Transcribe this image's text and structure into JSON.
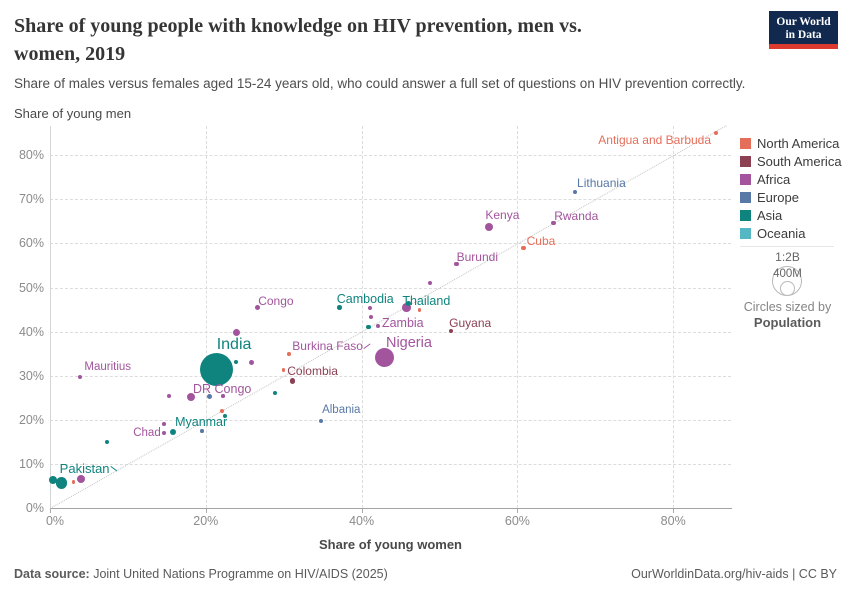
{
  "header": {
    "title_line1": "Share of young people with knowledge on HIV prevention, men vs.",
    "title_line2": "women, 2019",
    "subtitle": "Share of males versus females aged 15-24 years old, who could answer a full set of questions on HIV prevention correctly.",
    "logo_line1": "Our World",
    "logo_line2": "in Data"
  },
  "axes": {
    "y_axis_title": "Share of young men",
    "x_axis_title": "Share of young women",
    "x_ticks": [
      0,
      20,
      40,
      60,
      80
    ],
    "y_ticks": [
      0,
      10,
      20,
      30,
      40,
      50,
      60,
      70,
      80
    ],
    "tick_suffix": "%"
  },
  "legend": {
    "items": [
      {
        "label": "North America",
        "color": "#E56E5A"
      },
      {
        "label": "South America",
        "color": "#8C4152"
      },
      {
        "label": "Africa",
        "color": "#A2559C"
      },
      {
        "label": "Europe",
        "color": "#5878A6"
      },
      {
        "label": "Asia",
        "color": "#0F847F"
      },
      {
        "label": "Oceania",
        "color": "#55B6C4"
      }
    ],
    "size_legend": {
      "scale_label": "1:2B",
      "inner_label": "400M",
      "caption": "Circles sized by",
      "caption_emphasis": "Population"
    }
  },
  "footer": {
    "source_prefix": "Data source:",
    "source": " Joint United Nations Programme on HIV/AIDS (2025)",
    "attribution": "OurWorldinData.org/hiv-aids | CC BY"
  },
  "chart_data": {
    "type": "scatter",
    "title": "Share of young people with knowledge on HIV prevention, men vs. women, 2019",
    "xlabel": "Share of young women",
    "ylabel": "Share of young men",
    "x_range": [
      0,
      87.5
    ],
    "y_range": [
      0,
      86.8
    ],
    "grid": true,
    "diagonal_reference_line": true,
    "legend_position": "right",
    "series": [
      {
        "name": "North America",
        "color": "#E56E5A",
        "points": [
          {
            "x": 85.5,
            "y": 85.0,
            "r": 2.0,
            "label": "Antigua and Barbuda",
            "anchor": "right",
            "dx": -5,
            "dy": 1
          },
          {
            "x": 60.8,
            "y": 59.0,
            "r": 2.2,
            "label": "Cuba",
            "dx": 3,
            "dy": -13
          },
          {
            "x": 47.4,
            "y": 44.9,
            "r": 1.7
          },
          {
            "x": 30.7,
            "y": 34.9,
            "r": 1.8
          },
          {
            "x": 30.0,
            "y": 31.3,
            "r": 1.7
          },
          {
            "x": 22.1,
            "y": 22.0,
            "r": 1.9
          },
          {
            "x": 3.0,
            "y": 5.9,
            "r": 1.7
          }
        ]
      },
      {
        "name": "South America",
        "color": "#8C4152",
        "points": [
          {
            "x": 51.5,
            "y": 40.1,
            "r": 2.3,
            "label": "Guyana",
            "dx": -2,
            "dy": -14
          },
          {
            "x": 31.1,
            "y": 28.8,
            "r": 2.7,
            "label": "Colombia",
            "dx": -5,
            "dy": -16
          }
        ]
      },
      {
        "name": "Africa",
        "color": "#A2559C",
        "points": [
          {
            "x": 64.6,
            "y": 64.6,
            "r": 2.3,
            "label": "Rwanda",
            "dx": 1,
            "dy": -13
          },
          {
            "x": 56.4,
            "y": 63.7,
            "r": 4.0,
            "label": "Kenya",
            "dx": -4,
            "dy": -18
          },
          {
            "x": 52.2,
            "y": 55.3,
            "r": 2.3,
            "label": "Burundi",
            "dx": 0,
            "dy": -13
          },
          {
            "x": 48.8,
            "y": 51.0,
            "r": 2.0
          },
          {
            "x": 45.8,
            "y": 45.4,
            "r": 4.3
          },
          {
            "x": 41.1,
            "y": 45.4,
            "r": 2.0
          },
          {
            "x": 41.2,
            "y": 43.3,
            "r": 2.0
          },
          {
            "x": 42.1,
            "y": 41.3,
            "r": 2.3,
            "label": "Zambia",
            "label_size": 12.5,
            "dx": 4,
            "dy": -9
          },
          {
            "x": 26.6,
            "y": 45.4,
            "r": 2.6,
            "label": "Congo",
            "dx": 1,
            "dy": -13
          },
          {
            "x": 23.9,
            "y": 39.7,
            "r": 3.5
          },
          {
            "x": 43.0,
            "y": 34.2,
            "r": 9.5,
            "label": "Nigeria",
            "label_size": 14.5,
            "dx": 1,
            "dy": -21
          },
          {
            "x": 31.1,
            "y": 35.6,
            "r": 0,
            "label": "Burkina Faso",
            "dx": 0,
            "dy": -11,
            "pointer": "ne"
          },
          {
            "x": 25.9,
            "y": 32.9,
            "r": 2.6
          },
          {
            "x": 3.9,
            "y": 29.7,
            "r": 2.0,
            "label": "Mauritius",
            "label_size": 11.5,
            "dx": 4,
            "dy": -16
          },
          {
            "x": 15.3,
            "y": 25.4,
            "r": 2.0
          },
          {
            "x": 18.1,
            "y": 25.2,
            "r": 4.3,
            "label": "DR Congo",
            "label_size": 12.5,
            "dx": 2,
            "dy": -14
          },
          {
            "x": 22.2,
            "y": 25.4,
            "r": 1.8
          },
          {
            "x": 14.6,
            "y": 19.0,
            "r": 1.8
          },
          {
            "x": 14.6,
            "y": 17.0,
            "r": 2.1,
            "label": "Chad",
            "label_size": 11.5,
            "anchor": "right",
            "dx": -3,
            "dy": -6
          },
          {
            "x": 4.0,
            "y": 6.6,
            "r": 4.0
          }
        ]
      },
      {
        "name": "Europe",
        "color": "#5878A6",
        "points": [
          {
            "x": 67.4,
            "y": 71.7,
            "r": 2.2,
            "label": "Lithuania",
            "dx": 2,
            "dy": -15
          },
          {
            "x": 20.5,
            "y": 25.2,
            "r": 2.6
          },
          {
            "x": 34.8,
            "y": 19.7,
            "r": 2.0,
            "label": "Albania",
            "label_size": 11.5,
            "dx": 1,
            "dy": -17
          },
          {
            "x": 19.5,
            "y": 17.5,
            "r": 1.8
          }
        ]
      },
      {
        "name": "Asia",
        "color": "#0F847F",
        "points": [
          {
            "x": 37.2,
            "y": 45.4,
            "r": 2.3,
            "label": "Cambodia",
            "label_size": 12.5,
            "dx": -3,
            "dy": -15
          },
          {
            "x": 46.0,
            "y": 46.3,
            "r": 2.5,
            "label": "Thailand",
            "label_size": 12.5,
            "dx": -6,
            "dy": -9
          },
          {
            "x": 40.9,
            "y": 41.0,
            "r": 2.3
          },
          {
            "x": 21.4,
            "y": 31.5,
            "r": 16.5,
            "label": "India",
            "label_size": 16,
            "dx": 0,
            "dy": -33
          },
          {
            "x": 23.9,
            "y": 33.1,
            "r": 2.0
          },
          {
            "x": 28.9,
            "y": 26.1,
            "r": 2.0
          },
          {
            "x": 22.5,
            "y": 20.9,
            "r": 2.2
          },
          {
            "x": 15.8,
            "y": 17.2,
            "r": 3.0,
            "label": "Myanmar",
            "label_size": 12.5,
            "dx": 2,
            "dy": -16
          },
          {
            "x": 7.3,
            "y": 15.0,
            "r": 2.0
          },
          {
            "x": 1.5,
            "y": 5.7,
            "r": 5.8,
            "label": "Pakistan",
            "label_size": 13,
            "dx": -2,
            "dy": -21,
            "pointer": "se"
          },
          {
            "x": 0.4,
            "y": 6.3,
            "r": 4.2
          }
        ]
      },
      {
        "name": "Oceania",
        "color": "#55B6C4",
        "points": []
      }
    ]
  }
}
